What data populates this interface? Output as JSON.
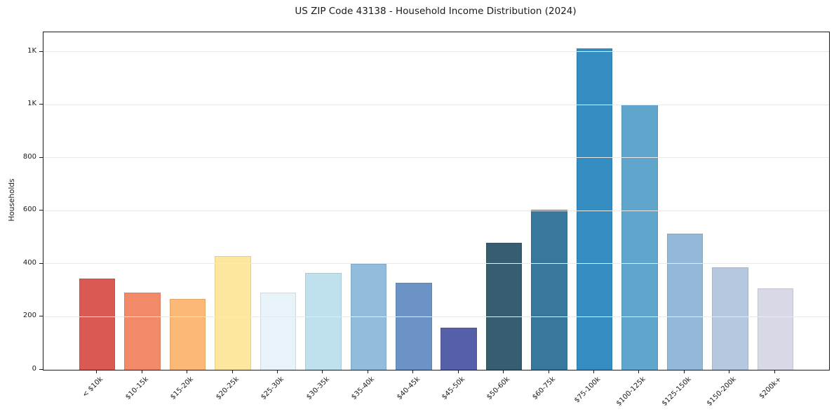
{
  "chart_data": {
    "type": "bar",
    "title": "US ZIP Code 43138 - Household Income Distribution (2024)",
    "xlabel": "",
    "ylabel": "Households",
    "categories": [
      "< $10k",
      "$10-15k",
      "$15-20k",
      "$20-25k",
      "$25-30k",
      "$30-35k",
      "$35-40k",
      "$40-45k",
      "$45-50k",
      "$50-60k",
      "$60-75k",
      "$75-100k",
      "$100-125k",
      "$125-150k",
      "$150-200k",
      "$200k+"
    ],
    "values": [
      345,
      291,
      267,
      430,
      292,
      365,
      400,
      328,
      158,
      479,
      604,
      1213,
      1002,
      513,
      386,
      307
    ],
    "bar_colors": [
      "#d85a52",
      "#f28a68",
      "#fbb877",
      "#fde79e",
      "#e7f3f8",
      "#bfe1ee",
      "#92bcdc",
      "#6b93c6",
      "#5560a8",
      "#375d70",
      "#38789d",
      "#358cc0",
      "#5fa5cc",
      "#93b8da",
      "#b6c8e0",
      "#d7dae6"
    ],
    "ylim": [
      0,
      1274
    ],
    "yticks": {
      "values": [
        0,
        200,
        400,
        600,
        800,
        1000,
        1200
      ],
      "labels": [
        "0",
        "200",
        "400",
        "600",
        "800",
        "1K",
        "1K"
      ]
    },
    "grid": "horizontal-light-over-bars",
    "legend": "none",
    "x_tick_rotation_deg": 45,
    "axis_color": "#1a1a1a",
    "grid_color": "#e9e9e9",
    "background_color": "#ffffff"
  }
}
